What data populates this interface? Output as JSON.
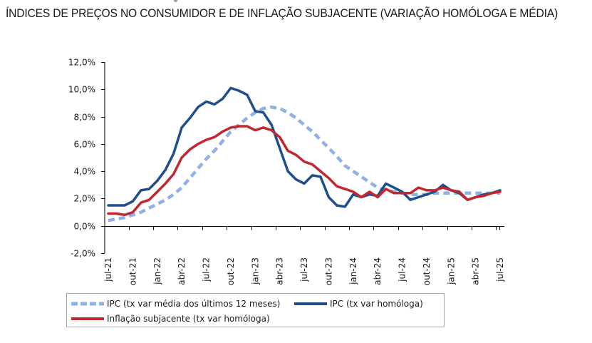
{
  "page": {
    "title": "ÍNDICES DE PREÇOS NO CONSUMIDOR E DE INFLAÇÃO SUBJACENTE (VARIAÇÃO HOMÓLOGA E MÉDIA)"
  },
  "chart_data": {
    "type": "line",
    "title": "ÍNDICES DE PREÇOS NO CONSUMIDOR E DE INFLAÇÃO SUBJACENTE (VARIAÇÃO HOMÓLOGA E MÉDIA)",
    "xlabel": "",
    "ylabel": "",
    "ylim": [
      -2.0,
      12.0
    ],
    "yticks": [
      12.0,
      10.0,
      8.0,
      6.0,
      4.0,
      2.0,
      0.0,
      -2.0
    ],
    "ytick_labels": [
      "12,0%",
      "10,0%",
      "8,0%",
      "6,0%",
      "4,0%",
      "2,0%",
      "0,0%",
      "-2,0%"
    ],
    "grid": false,
    "legend_position": "bottom",
    "x": [
      "jul-21",
      "ago-21",
      "set-21",
      "out-21",
      "nov-21",
      "dez-21",
      "jan-22",
      "fev-22",
      "mar-22",
      "abr-22",
      "mai-22",
      "jun-22",
      "jul-22",
      "ago-22",
      "set-22",
      "out-22",
      "nov-22",
      "dez-22",
      "jan-23",
      "fev-23",
      "mar-23",
      "abr-23",
      "mai-23",
      "jun-23",
      "jul-23",
      "ago-23",
      "set-23",
      "out-23",
      "nov-23",
      "dez-23",
      "jan-24",
      "fev-24",
      "mar-24",
      "abr-24",
      "mai-24",
      "jun-24",
      "jul-24",
      "ago-24",
      "set-24",
      "out-24",
      "nov-24",
      "dez-24",
      "jan-25",
      "fev-25",
      "mar-25",
      "abr-25",
      "mai-25",
      "jun-25",
      "jul-25"
    ],
    "xtick_labels": [
      "jul-21",
      "out-21",
      "jan-22",
      "abr-22",
      "jul-22",
      "out-22",
      "jan-23",
      "abr-23",
      "jul-23",
      "out-23",
      "jan-24",
      "abr-24",
      "jul-24",
      "out-24",
      "jan-25",
      "abr-25",
      "jul-25"
    ],
    "series": [
      {
        "name": "IPC (tx var média dos últimos 12 meses)",
        "color": "#8eb1e7",
        "style": "dashed",
        "values": [
          0.4,
          0.5,
          0.6,
          0.8,
          1.0,
          1.3,
          1.6,
          1.9,
          2.3,
          2.8,
          3.5,
          4.2,
          4.9,
          5.5,
          6.2,
          6.9,
          7.4,
          7.9,
          8.3,
          8.6,
          8.7,
          8.6,
          8.3,
          7.9,
          7.4,
          6.9,
          6.3,
          5.7,
          5.1,
          4.4,
          4.0,
          3.6,
          3.2,
          2.8,
          2.6,
          2.5,
          2.4,
          2.3,
          2.3,
          2.3,
          2.4,
          2.4,
          2.4,
          2.4,
          2.4,
          2.4,
          2.4,
          2.4,
          2.4
        ]
      },
      {
        "name": "IPC (tx var homóloga)",
        "color": "#1f4e8c",
        "style": "solid",
        "values": [
          1.5,
          1.5,
          1.5,
          1.8,
          2.6,
          2.7,
          3.3,
          4.1,
          5.3,
          7.2,
          7.9,
          8.7,
          9.1,
          8.9,
          9.3,
          10.1,
          9.9,
          9.6,
          8.4,
          8.3,
          7.4,
          5.7,
          4.0,
          3.4,
          3.1,
          3.7,
          3.6,
          2.1,
          1.5,
          1.4,
          2.3,
          2.1,
          2.3,
          2.2,
          3.1,
          2.8,
          2.5,
          1.9,
          2.1,
          2.3,
          2.5,
          3.0,
          2.6,
          2.4,
          1.9,
          2.1,
          2.3,
          2.4,
          2.6
        ]
      },
      {
        "name": "Inflação subjacente (tx var homóloga)",
        "color": "#c1272d",
        "style": "solid",
        "values": [
          0.9,
          0.9,
          0.8,
          1.0,
          1.7,
          1.9,
          2.5,
          3.1,
          3.8,
          5.0,
          5.6,
          6.0,
          6.3,
          6.5,
          6.9,
          7.2,
          7.3,
          7.3,
          7.0,
          7.2,
          7.0,
          6.5,
          5.5,
          5.2,
          4.7,
          4.5,
          4.0,
          3.5,
          2.9,
          2.7,
          2.5,
          2.1,
          2.5,
          2.1,
          2.7,
          2.4,
          2.4,
          2.4,
          2.8,
          2.6,
          2.6,
          2.8,
          2.6,
          2.5,
          1.9,
          2.1,
          2.2,
          2.4,
          2.5
        ]
      }
    ]
  },
  "legend": {
    "items": [
      {
        "label": "IPC (tx var média dos últimos 12 meses)",
        "color": "#8eb1e7",
        "style": "dashed"
      },
      {
        "label": "IPC (tx var homóloga)",
        "color": "#1f4e8c",
        "style": "solid"
      },
      {
        "label": "Inflação subjacente (tx var homóloga)",
        "color": "#c1272d",
        "style": "solid"
      }
    ]
  }
}
